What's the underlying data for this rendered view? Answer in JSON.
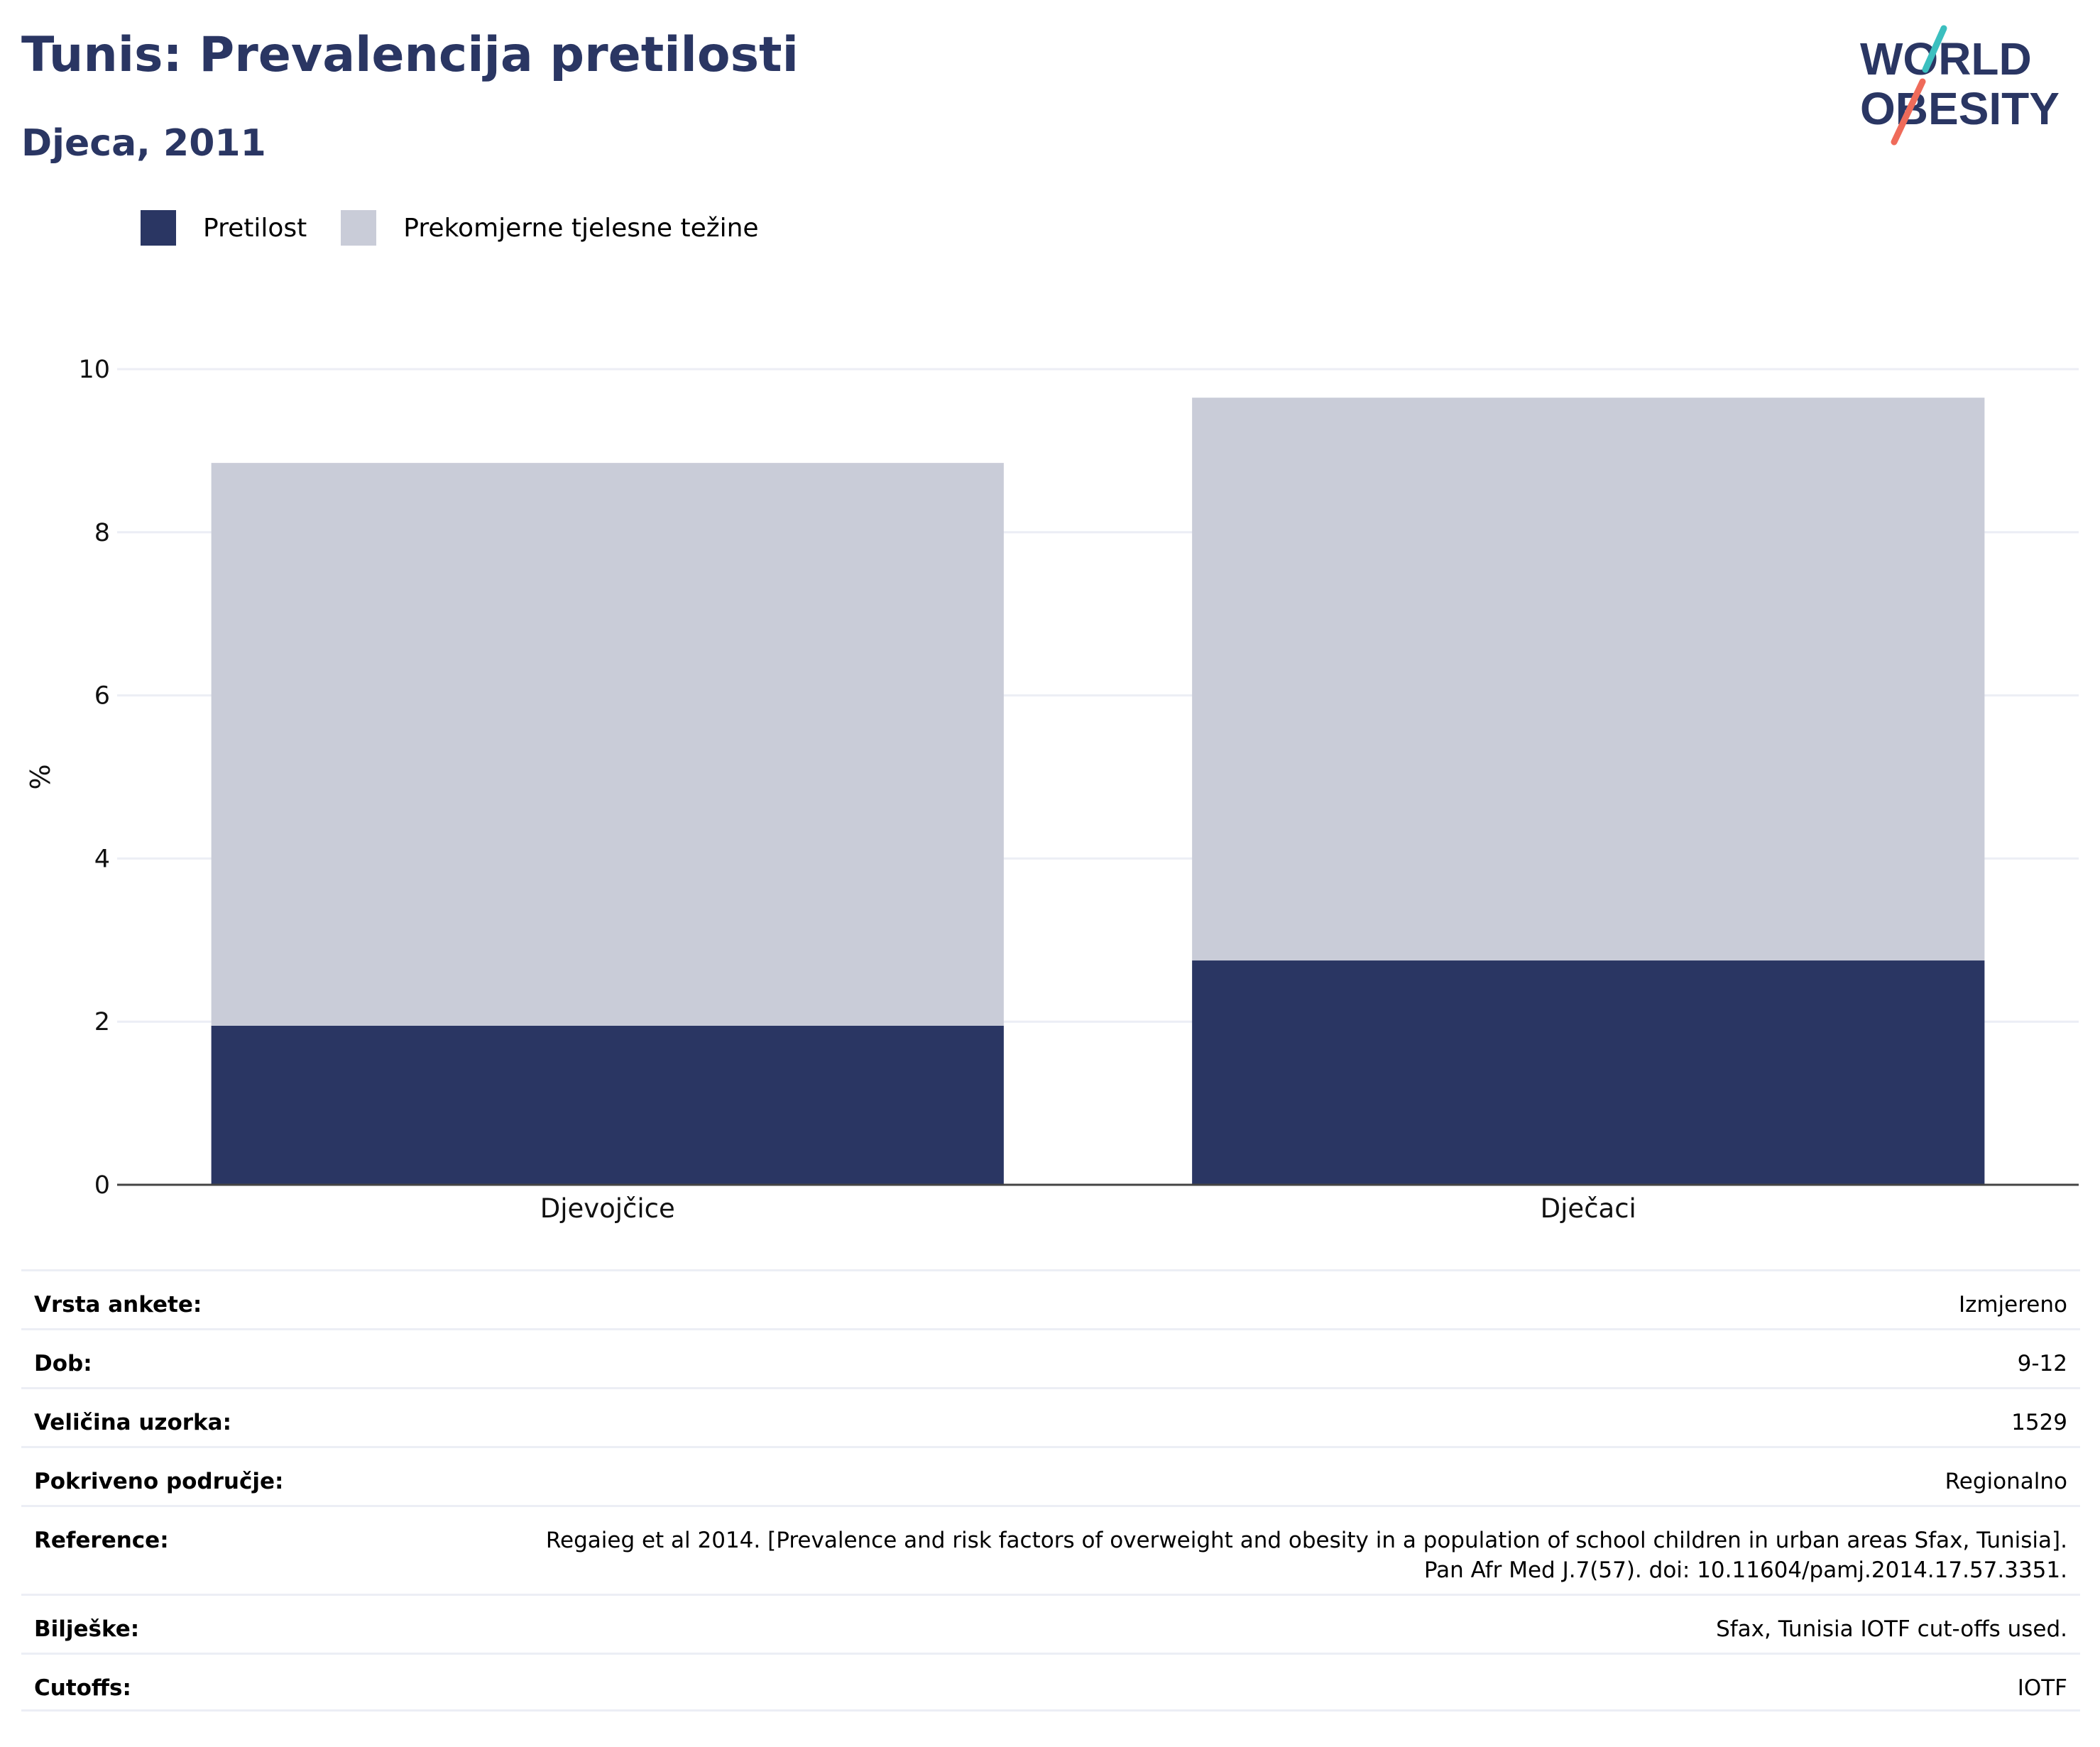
{
  "header": {
    "title": "Tunis: Prevalencija pretilosti",
    "subtitle": "Djeca, 2011"
  },
  "logo": {
    "line1": "WORLD",
    "line2": "OBESITY",
    "colors": {
      "text": "#2a3663",
      "slash_top": "#3bbfbf",
      "slash_bottom": "#ef6b5a"
    }
  },
  "colors": {
    "obesity": "#2a3663",
    "overweight": "#c9ccd8",
    "grid": "#eceef5",
    "axis": "#444444"
  },
  "chart_data": {
    "type": "bar",
    "stacked": true,
    "categories": [
      "Djevojčice",
      "Dječaci"
    ],
    "series": [
      {
        "name": "Pretilost",
        "values": [
          1.95,
          2.75
        ]
      },
      {
        "name": "Prekomjerne tjelesne težine",
        "values": [
          6.9,
          6.9
        ]
      }
    ],
    "ylabel": "%",
    "xlabel": "",
    "ylim": [
      0,
      10
    ],
    "yticks": [
      "0",
      "2",
      "4",
      "6",
      "8",
      "10"
    ],
    "grid": true,
    "legend_position": "top-left"
  },
  "meta": [
    {
      "label": "Vrsta ankete:",
      "value": "Izmjereno"
    },
    {
      "label": "Dob:",
      "value": "9-12"
    },
    {
      "label": "Veličina uzorka:",
      "value": "1529"
    },
    {
      "label": "Pokriveno područje:",
      "value": "Regionalno"
    },
    {
      "label": "Reference:",
      "value": "Regaieg et al 2014. [Prevalence and risk factors of overweight and obesity in a population of school children in urban areas Sfax, Tunisia]. Pan Afr Med J.7(57). doi: 10.11604/pamj.2014.17.57.3351."
    },
    {
      "label": "Bilješke:",
      "value": "Sfax, Tunisia IOTF cut-offs used."
    },
    {
      "label": "Cutoffs:",
      "value": "IOTF"
    }
  ]
}
